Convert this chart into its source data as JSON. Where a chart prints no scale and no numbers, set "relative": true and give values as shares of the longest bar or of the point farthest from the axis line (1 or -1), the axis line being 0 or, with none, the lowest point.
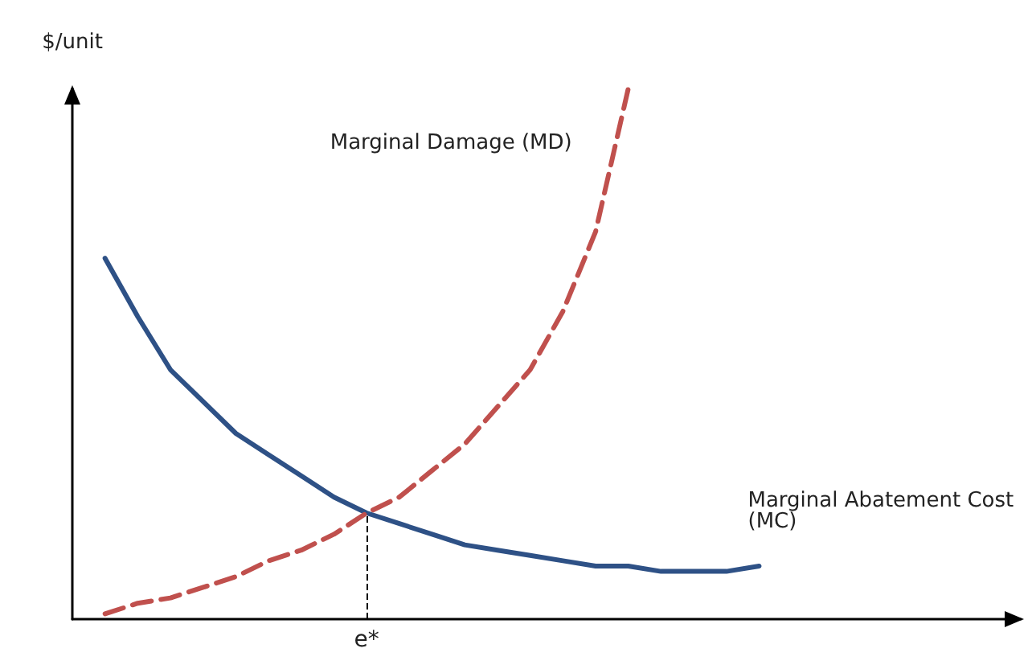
{
  "chart_data": {
    "type": "line",
    "relative": true,
    "ylabel": "$/unit",
    "categories": [
      null,
      null,
      null,
      null,
      null,
      null,
      null,
      null,
      null,
      null,
      null,
      null,
      null,
      null,
      null,
      null,
      null,
      null,
      null,
      null,
      null,
      null,
      null,
      null,
      null,
      null,
      null,
      null,
      null,
      null
    ],
    "series": [
      {
        "name": "Marginal Abatement Cost (MC)",
        "color": "#2e5186",
        "line_style": "solid",
        "values": [
          null,
          0.68,
          0.57,
          0.47,
          0.41,
          0.35,
          0.31,
          0.27,
          0.23,
          0.2,
          0.18,
          0.16,
          0.14,
          0.13,
          0.12,
          0.11,
          0.1,
          0.1,
          0.09,
          0.09,
          0.09,
          0.1,
          null,
          null,
          null,
          null,
          null,
          null,
          null,
          null
        ]
      },
      {
        "name": "Marginal Damage (MD)",
        "color": "#c0504d",
        "line_style": "dashed",
        "values": [
          null,
          0.01,
          0.03,
          0.04,
          0.06,
          0.08,
          0.11,
          0.13,
          0.16,
          0.2,
          0.23,
          0.28,
          0.33,
          0.4,
          0.47,
          0.58,
          0.73,
          1.0,
          null,
          null,
          null,
          null,
          null,
          null,
          null,
          null,
          null,
          null,
          null,
          null
        ]
      }
    ],
    "annotations": [
      "e*"
    ],
    "marker": "none",
    "grid": false,
    "legend": false
  }
}
